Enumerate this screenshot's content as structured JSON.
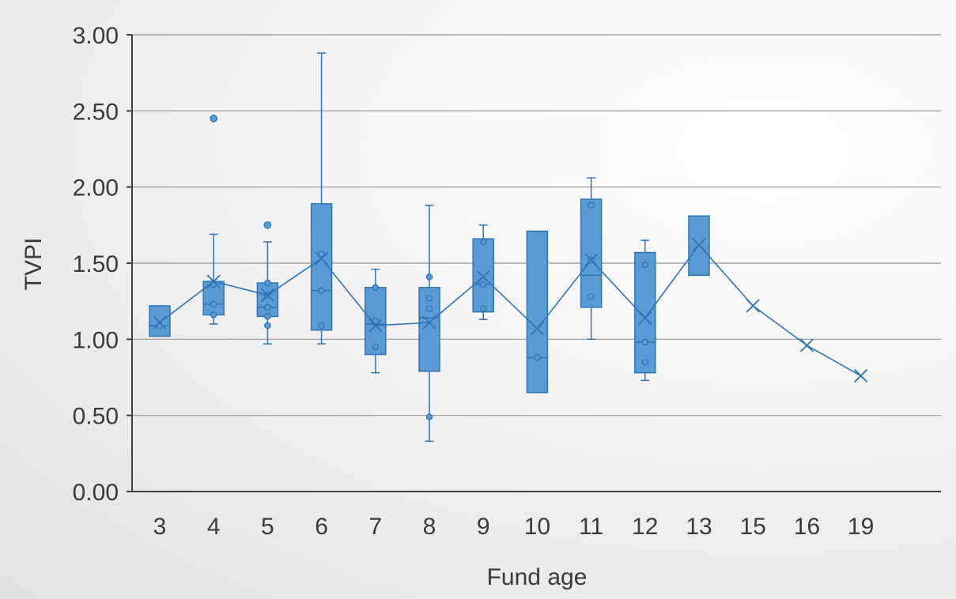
{
  "chart_data": {
    "type": "box",
    "title": "",
    "xlabel": "Fund age",
    "ylabel": "TVPI",
    "ylim": [
      0,
      3
    ],
    "y_ticks": [
      "0.00",
      "0.50",
      "1.00",
      "1.50",
      "2.00",
      "2.50",
      "3.00"
    ],
    "y_tick_values": [
      0,
      0.5,
      1,
      1.5,
      2,
      2.5,
      3
    ],
    "grid": true,
    "legend": "none",
    "colors": {
      "box_fill": "#5b9bd5",
      "box_stroke": "#2e75b6",
      "line": "#2e75b6",
      "grid": "#a6a6a6",
      "axis": "#404040"
    },
    "categories": [
      "3",
      "4",
      "5",
      "6",
      "7",
      "8",
      "9",
      "10",
      "11",
      "12",
      "13",
      "15",
      "16",
      "19"
    ],
    "boxes": [
      {
        "category": "3",
        "min": null,
        "q1": 1.02,
        "median": 1.09,
        "q3": 1.22,
        "max": null,
        "mean": 1.11,
        "inner": [
          1.09
        ],
        "outliers": []
      },
      {
        "category": "4",
        "min": 1.1,
        "q1": 1.16,
        "median": 1.23,
        "q3": 1.38,
        "max": 1.69,
        "mean": 1.38,
        "inner": [
          1.16,
          1.23,
          1.36
        ],
        "outliers": [
          2.45
        ]
      },
      {
        "category": "5",
        "min": 0.97,
        "q1": 1.15,
        "median": 1.21,
        "q3": 1.37,
        "max": 1.64,
        "mean": 1.29,
        "inner": [
          1.09,
          1.15,
          1.21,
          1.29,
          1.37
        ],
        "outliers": [
          1.75
        ]
      },
      {
        "category": "6",
        "min": 0.97,
        "q1": 1.06,
        "median": 1.32,
        "q3": 1.89,
        "max": 2.88,
        "mean": 1.53,
        "inner": [
          1.09,
          1.32,
          1.56
        ],
        "outliers": []
      },
      {
        "category": "7",
        "min": 0.78,
        "q1": 0.9,
        "median": 1.1,
        "q3": 1.34,
        "max": 1.46,
        "mean": 1.09,
        "inner": [
          0.95,
          1.12,
          1.34
        ],
        "outliers": []
      },
      {
        "category": "8",
        "min": 0.33,
        "q1": 0.79,
        "median": 1.14,
        "q3": 1.34,
        "max": 1.88,
        "mean": 1.11,
        "inner": [
          0.49,
          1.2,
          1.27,
          1.41
        ],
        "outliers": []
      },
      {
        "category": "9",
        "min": 1.13,
        "q1": 1.18,
        "median": 1.36,
        "q3": 1.66,
        "max": 1.75,
        "mean": 1.41,
        "inner": [
          1.2,
          1.36,
          1.64
        ],
        "outliers": []
      },
      {
        "category": "10",
        "min": null,
        "q1": 0.65,
        "median": 0.88,
        "q3": 1.71,
        "max": null,
        "mean": 1.07,
        "inner": [
          0.88
        ],
        "outliers": []
      },
      {
        "category": "11",
        "min": 1.0,
        "q1": 1.21,
        "median": 1.42,
        "q3": 1.92,
        "max": 2.06,
        "mean": 1.52,
        "inner": [
          1.28,
          1.52,
          1.88
        ],
        "outliers": []
      },
      {
        "category": "12",
        "min": 0.73,
        "q1": 0.78,
        "median": 0.98,
        "q3": 1.57,
        "max": 1.65,
        "mean": 1.14,
        "inner": [
          0.85,
          0.98,
          1.49
        ],
        "outliers": []
      },
      {
        "category": "13",
        "min": null,
        "q1": 1.42,
        "median": null,
        "q3": 1.81,
        "max": null,
        "mean": 1.62,
        "inner": [],
        "outliers": []
      },
      {
        "category": "15",
        "min": null,
        "q1": null,
        "median": null,
        "q3": null,
        "max": null,
        "mean": 1.22,
        "inner": [],
        "outliers": []
      },
      {
        "category": "16",
        "min": null,
        "q1": null,
        "median": null,
        "q3": null,
        "max": null,
        "mean": 0.96,
        "inner": [],
        "outliers": []
      },
      {
        "category": "19",
        "min": null,
        "q1": null,
        "median": null,
        "q3": null,
        "max": null,
        "mean": 0.76,
        "inner": [],
        "outliers": []
      }
    ]
  }
}
